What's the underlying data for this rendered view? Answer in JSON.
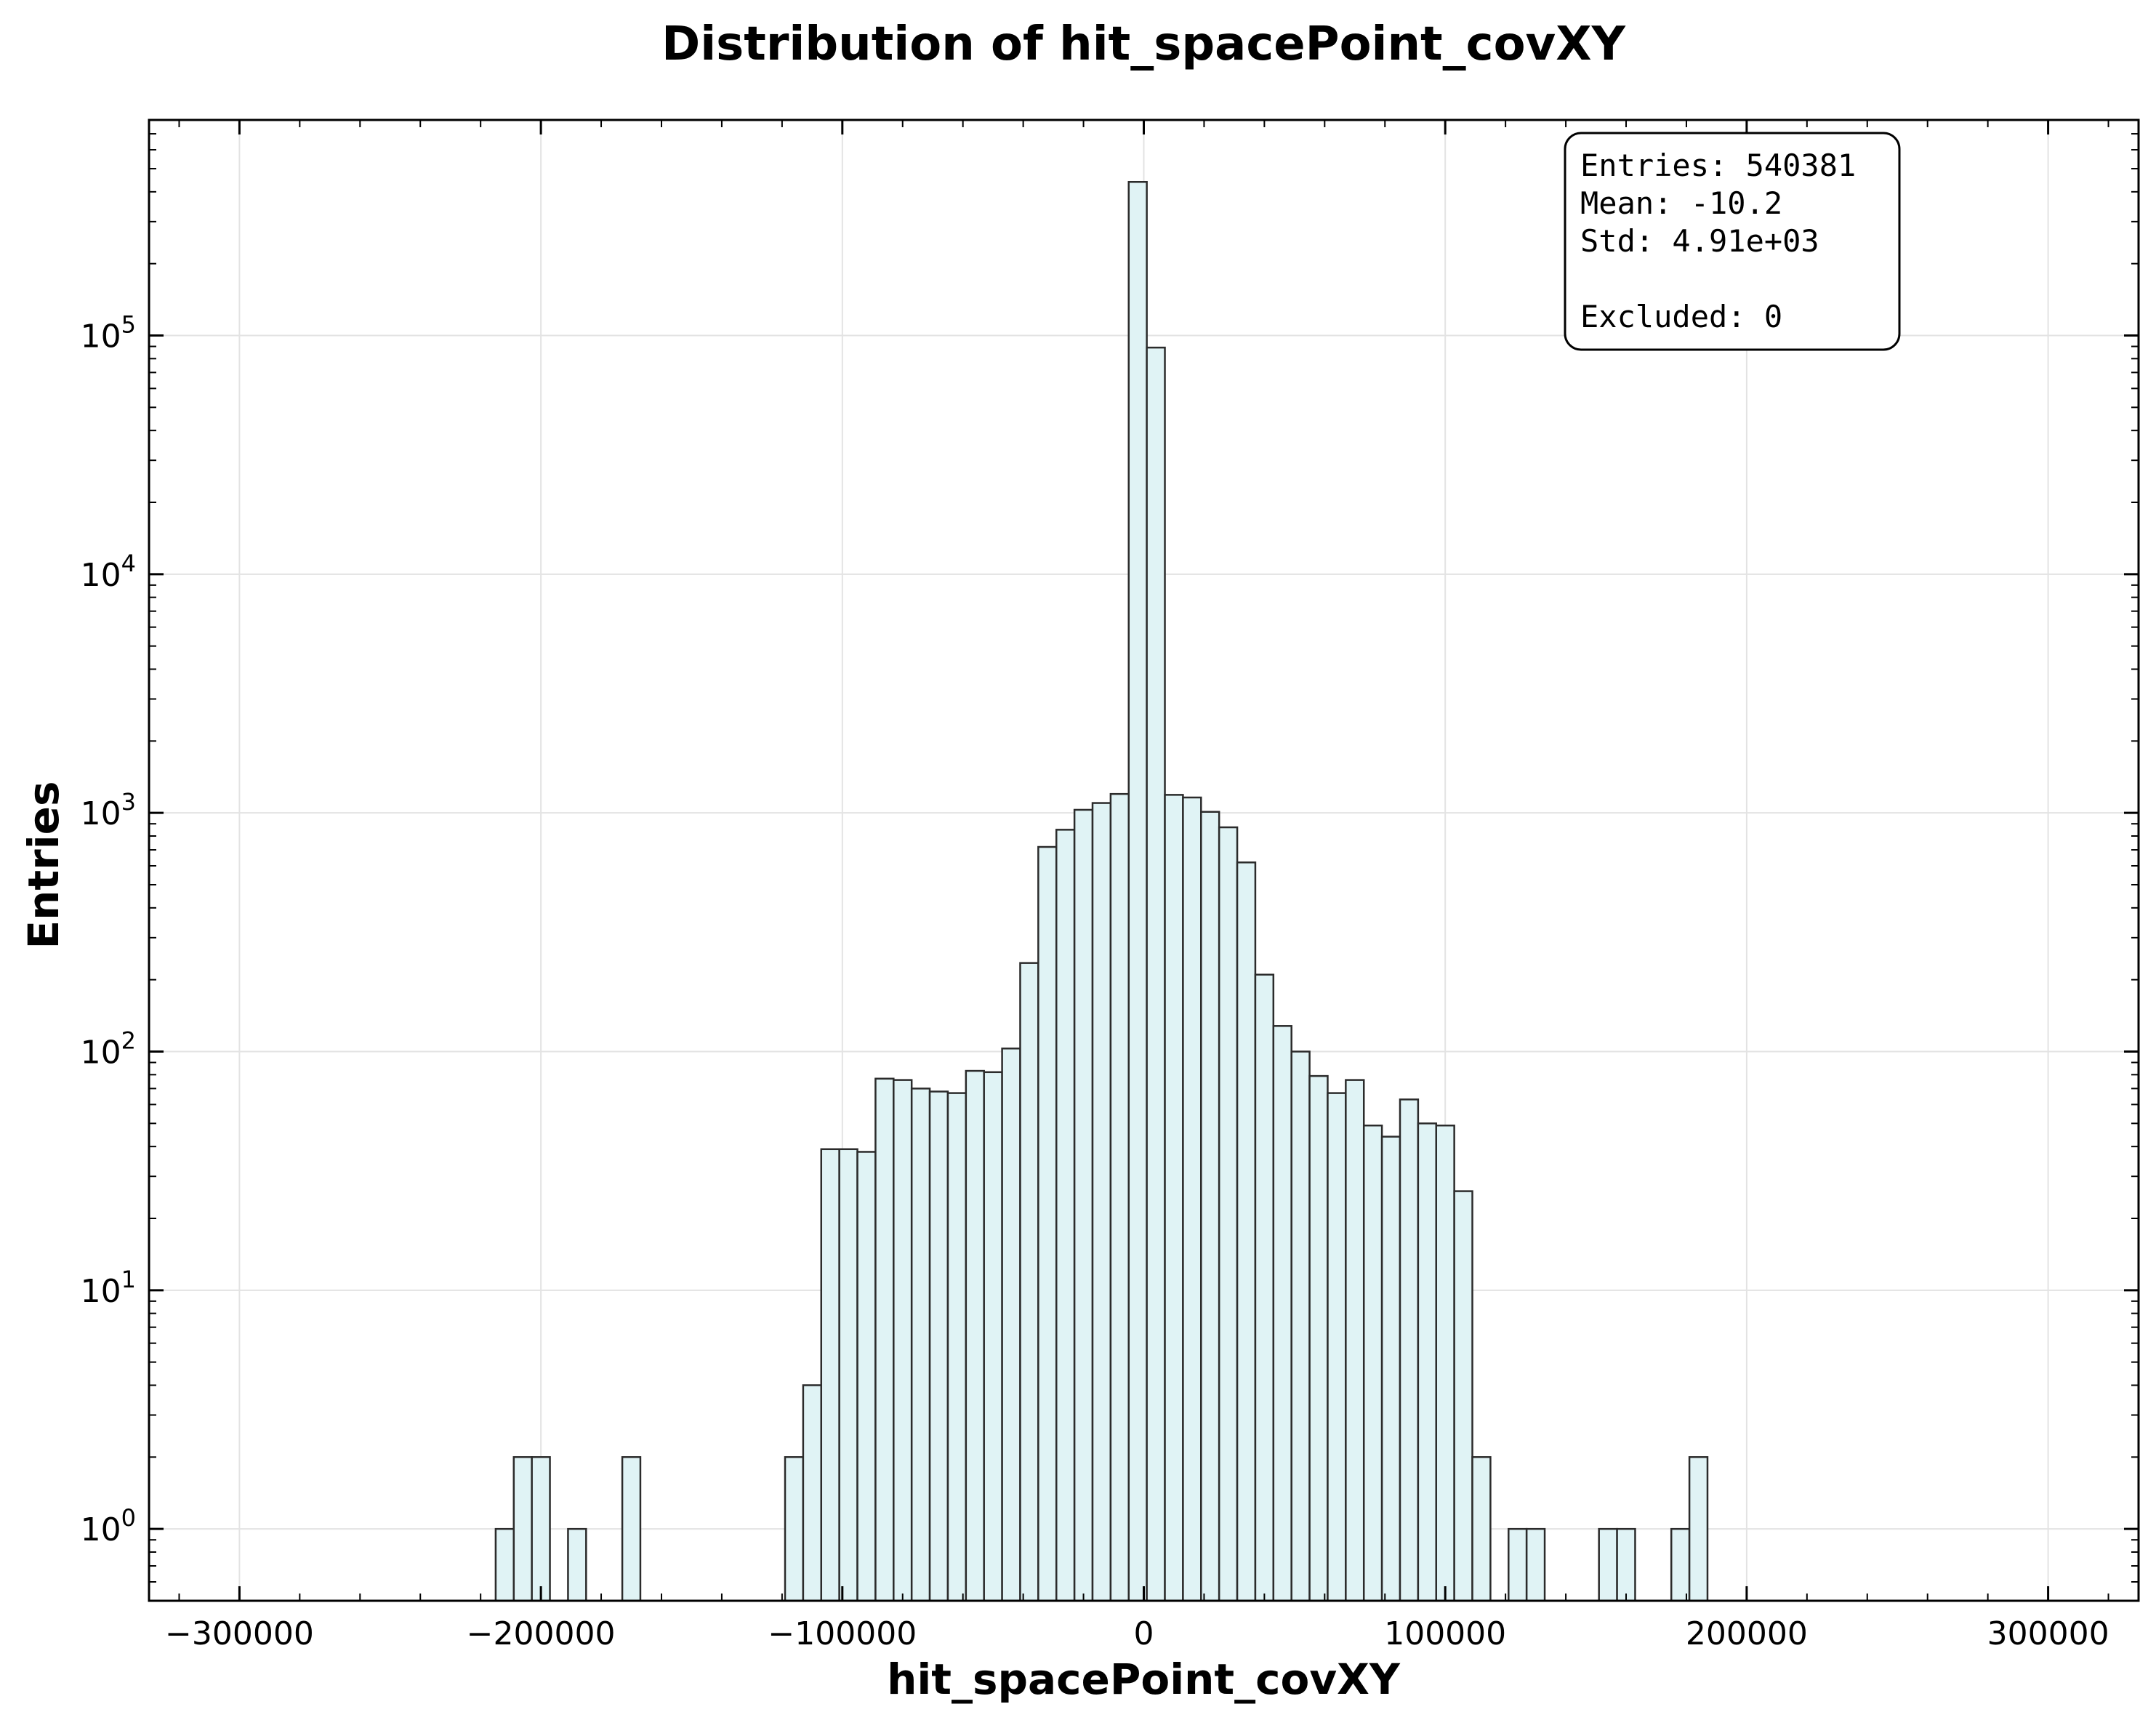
{
  "chart_data": {
    "type": "bar",
    "title": "Distribution of hit_spacePoint_covXY",
    "xlabel": "hit_spacePoint_covXY",
    "ylabel": "Entries",
    "x_scale": "linear",
    "y_scale": "log",
    "xlim": [
      -330000,
      330000
    ],
    "ylim": [
      0.5,
      800000
    ],
    "x_ticks": [
      -300000,
      -200000,
      -100000,
      0,
      100000,
      200000,
      300000
    ],
    "x_tick_labels": [
      "−300000",
      "−200000",
      "−100000",
      "0",
      "100000",
      "200000",
      "300000"
    ],
    "y_ticks": [
      1,
      10,
      100,
      1000,
      10000,
      100000
    ],
    "y_tick_labels": [
      {
        "base": "10",
        "exp": "0"
      },
      {
        "base": "10",
        "exp": "1"
      },
      {
        "base": "10",
        "exp": "2"
      },
      {
        "base": "10",
        "exp": "3"
      },
      {
        "base": "10",
        "exp": "4"
      },
      {
        "base": "10",
        "exp": "5"
      }
    ],
    "grid": true,
    "bin_start": -215000,
    "bin_width": 6000,
    "bins": [
      {
        "x_start": -215000,
        "count": 1
      },
      {
        "x_start": -209000,
        "count": 2
      },
      {
        "x_start": -203000,
        "count": 2
      },
      {
        "x_start": -191000,
        "count": 1
      },
      {
        "x_start": -173000,
        "count": 2
      },
      {
        "x_start": -119000,
        "count": 2
      },
      {
        "x_start": -113000,
        "count": 4
      },
      {
        "x_start": -107000,
        "count": 39
      },
      {
        "x_start": -101000,
        "count": 39
      },
      {
        "x_start": -95000,
        "count": 38
      },
      {
        "x_start": -89000,
        "count": 77
      },
      {
        "x_start": -83000,
        "count": 76
      },
      {
        "x_start": -77000,
        "count": 70
      },
      {
        "x_start": -71000,
        "count": 68
      },
      {
        "x_start": -65000,
        "count": 67
      },
      {
        "x_start": -59000,
        "count": 83
      },
      {
        "x_start": -53000,
        "count": 82
      },
      {
        "x_start": -47000,
        "count": 103
      },
      {
        "x_start": -41000,
        "count": 235
      },
      {
        "x_start": -35000,
        "count": 720
      },
      {
        "x_start": -29000,
        "count": 850
      },
      {
        "x_start": -23000,
        "count": 1030
      },
      {
        "x_start": -17000,
        "count": 1100
      },
      {
        "x_start": -11000,
        "count": 1200
      },
      {
        "x_start": -5000,
        "count": 440000
      },
      {
        "x_start": 1000,
        "count": 89000
      },
      {
        "x_start": 7000,
        "count": 1190
      },
      {
        "x_start": 13000,
        "count": 1160
      },
      {
        "x_start": 19000,
        "count": 1010
      },
      {
        "x_start": 25000,
        "count": 870
      },
      {
        "x_start": 31000,
        "count": 620
      },
      {
        "x_start": 37000,
        "count": 210
      },
      {
        "x_start": 43000,
        "count": 128
      },
      {
        "x_start": 49000,
        "count": 100
      },
      {
        "x_start": 55000,
        "count": 79
      },
      {
        "x_start": 61000,
        "count": 67
      },
      {
        "x_start": 67000,
        "count": 76
      },
      {
        "x_start": 73000,
        "count": 49
      },
      {
        "x_start": 79000,
        "count": 44
      },
      {
        "x_start": 85000,
        "count": 63
      },
      {
        "x_start": 91000,
        "count": 50
      },
      {
        "x_start": 97000,
        "count": 49
      },
      {
        "x_start": 103000,
        "count": 26
      },
      {
        "x_start": 109000,
        "count": 2
      },
      {
        "x_start": 121000,
        "count": 1
      },
      {
        "x_start": 127000,
        "count": 1
      },
      {
        "x_start": 151000,
        "count": 1
      },
      {
        "x_start": 157000,
        "count": 1
      },
      {
        "x_start": 175000,
        "count": 1
      },
      {
        "x_start": 181000,
        "count": 2
      }
    ],
    "fill_color": "#e0f3f5",
    "edge_color": "#2b2b2b",
    "stats_box": {
      "position": "top-right",
      "lines": [
        "Entries: 540381",
        "Mean: -10.2",
        "Std: 4.91e+03",
        "",
        "Excluded: 0"
      ]
    }
  }
}
